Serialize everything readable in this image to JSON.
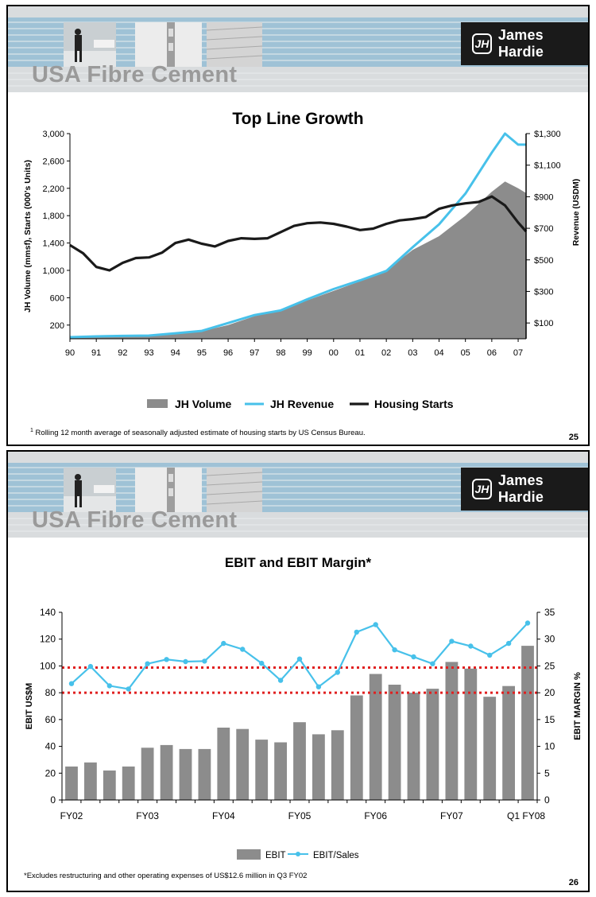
{
  "slides": [
    {
      "brand": "James Hardie",
      "brand_mark": "JH",
      "section_title": "USA Fibre Cement",
      "chart_title": "Top Line Growth",
      "footnote_marker": "1",
      "footnote": "Rolling 12 month average of seasonally adjusted estimate of housing starts by US Census Bureau.",
      "page_number": "25"
    },
    {
      "brand": "James Hardie",
      "brand_mark": "JH",
      "section_title": "USA Fibre Cement",
      "chart_title": "EBIT and EBIT Margin*",
      "footnote": "*Excludes restructuring and other operating expenses of US$12.6 million in Q3 FY02",
      "page_number": "26"
    }
  ],
  "colors": {
    "volume": "#8c8c8c",
    "revenue": "#47c1ea",
    "starts": "#1a1a1a",
    "ebit": "#8c8c8c",
    "margin": "#47c1ea",
    "threshold": "#e02020"
  },
  "chart_data": [
    {
      "type": "area",
      "title": "Top Line Growth",
      "ylabel": "JH Volume (mmsf),  Starts (000's Units)",
      "y2label": "Revenue (USDM)",
      "ylim": [
        0,
        3000
      ],
      "yticks": [
        "3,000",
        "2,600",
        "2,200",
        "1,800",
        "1,400",
        "1,000",
        "600",
        "200"
      ],
      "ytick_values": [
        3000,
        2600,
        2200,
        1800,
        1400,
        1000,
        600,
        200
      ],
      "y2lim": [
        0,
        1300
      ],
      "y2ticks": [
        "$1,300",
        "$1,100",
        "$900",
        "$700",
        "$500",
        "$300",
        "$100"
      ],
      "y2tick_values": [
        1300,
        1100,
        900,
        700,
        500,
        300,
        100
      ],
      "x_labels": [
        "90",
        "91",
        "92",
        "93",
        "94",
        "95",
        "96",
        "97",
        "98",
        "99",
        "00",
        "01",
        "02",
        "03",
        "04",
        "05",
        "06",
        "07"
      ],
      "x_values": [
        90,
        91,
        92,
        93,
        94,
        95,
        96,
        97,
        98,
        99,
        100,
        101,
        102,
        103,
        104,
        105,
        106,
        107
      ],
      "xlim": [
        90,
        107.3
      ],
      "legend": [
        "JH Volume",
        "JH Revenue",
        "Housing Starts"
      ],
      "series": [
        {
          "name": "JH Volume",
          "axis": "left",
          "x": [
            90,
            91,
            92,
            93,
            94,
            95,
            96,
            97,
            98,
            99,
            100,
            101,
            102,
            103,
            104,
            105,
            106,
            106.5,
            107,
            107.3
          ],
          "values": [
            20,
            25,
            35,
            45,
            70,
            110,
            200,
            330,
            420,
            560,
            700,
            840,
            1000,
            1300,
            1500,
            1800,
            2150,
            2300,
            2200,
            2130
          ]
        },
        {
          "name": "JH Revenue",
          "axis": "right",
          "x": [
            90,
            91,
            92,
            93,
            94,
            95,
            96,
            97,
            98,
            99,
            100,
            101,
            102,
            103,
            104,
            105,
            106,
            106.5,
            107,
            107.3
          ],
          "values": [
            10,
            15,
            18,
            20,
            35,
            50,
            100,
            150,
            180,
            250,
            315,
            370,
            430,
            580,
            725,
            920,
            1180,
            1300,
            1230,
            1230
          ]
        },
        {
          "name": "Housing Starts",
          "axis": "left",
          "x": [
            90,
            90.5,
            91,
            91.5,
            92,
            92.5,
            93,
            93.5,
            94,
            94.5,
            95,
            95.5,
            96,
            96.5,
            97,
            97.5,
            98,
            98.5,
            99,
            99.5,
            100,
            100.5,
            101,
            101.5,
            102,
            102.5,
            103,
            103.5,
            104,
            104.5,
            105,
            105.5,
            106,
            106.5,
            107,
            107.3
          ],
          "values": [
            1370,
            1250,
            1050,
            1000,
            1110,
            1180,
            1190,
            1260,
            1400,
            1450,
            1390,
            1350,
            1430,
            1470,
            1460,
            1470,
            1560,
            1650,
            1690,
            1700,
            1680,
            1640,
            1590,
            1610,
            1680,
            1730,
            1750,
            1780,
            1900,
            1950,
            1980,
            2000,
            2080,
            1950,
            1700,
            1570
          ]
        }
      ]
    },
    {
      "type": "bar",
      "title": "EBIT and EBIT Margin*",
      "ylabel": "EBIT US$M",
      "y2label": "EBIT MARGIN %",
      "ylim": [
        0,
        140
      ],
      "yticks": [
        "140",
        "120",
        "100",
        "80",
        "60",
        "40",
        "20",
        "0"
      ],
      "ytick_values": [
        140,
        120,
        100,
        80,
        60,
        40,
        20,
        0
      ],
      "y2lim": [
        0,
        35
      ],
      "y2ticks": [
        "35",
        "30",
        "25",
        "20",
        "15",
        "10",
        "5",
        "0"
      ],
      "y2tick_values": [
        35,
        30,
        25,
        20,
        15,
        10,
        5,
        0
      ],
      "x_labels": [
        "FY02",
        "FY03",
        "FY04",
        "FY05",
        "FY06",
        "FY07",
        "Q1 FY08"
      ],
      "x_label_index": [
        0,
        4,
        8,
        12,
        16,
        20,
        24
      ],
      "legend": [
        "EBIT",
        "EBIT/Sales"
      ],
      "reference_lines_margin_pct": [
        20,
        24.7
      ],
      "series": [
        {
          "name": "EBIT",
          "axis": "left",
          "values": [
            25,
            28,
            22,
            25,
            39,
            41,
            38,
            38,
            54,
            53,
            45,
            43,
            58,
            49,
            52,
            78,
            94,
            86,
            80,
            83,
            103,
            98,
            77,
            85,
            115
          ]
        },
        {
          "name": "EBIT/Sales",
          "axis": "right",
          "values": [
            21.7,
            24.9,
            21.3,
            20.7,
            25.4,
            26.2,
            25.8,
            25.9,
            29.2,
            28.1,
            25.5,
            22.3,
            26.3,
            21.1,
            23.8,
            31.3,
            32.7,
            28.0,
            26.7,
            25.4,
            29.6,
            28.7,
            27.0,
            29.2,
            33.0
          ]
        }
      ]
    }
  ]
}
